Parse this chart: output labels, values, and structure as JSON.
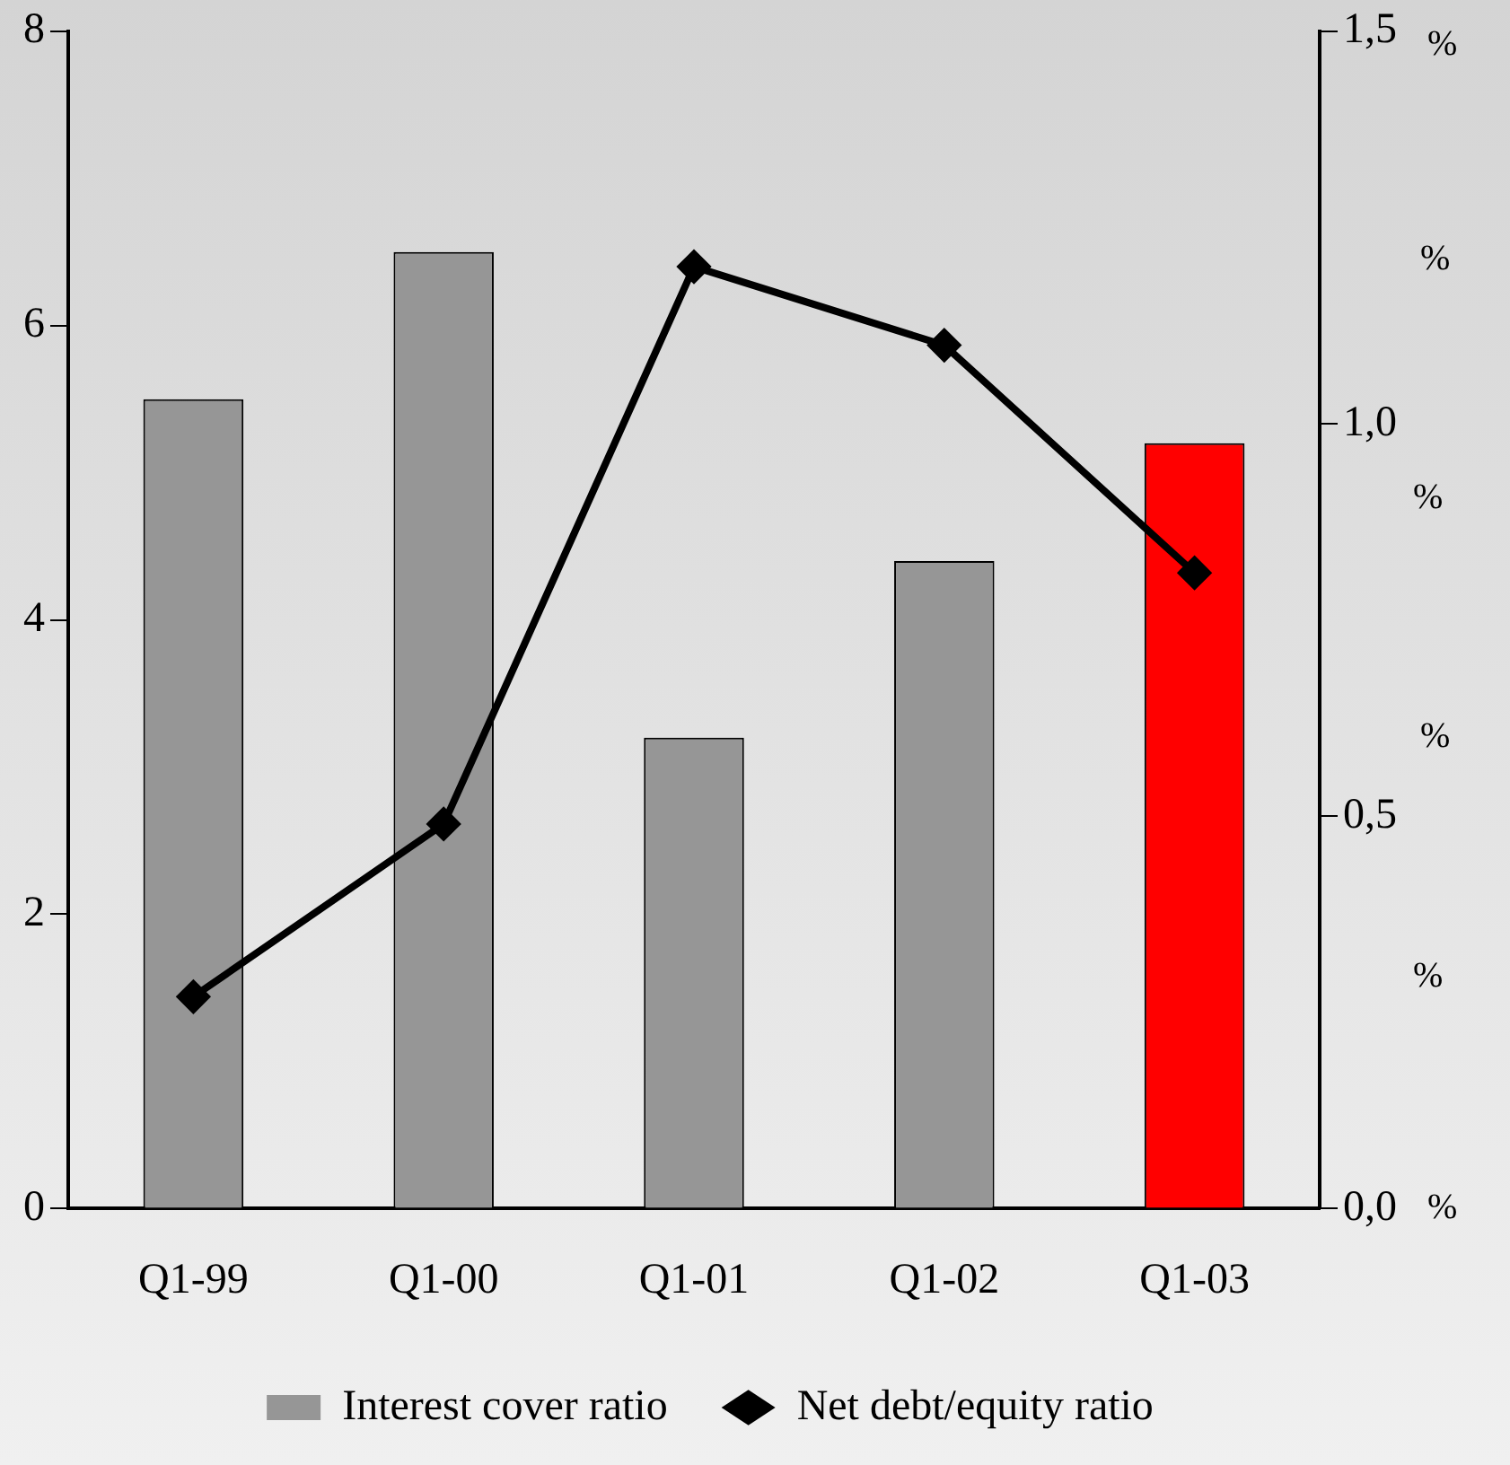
{
  "chart_data": {
    "type": "bar",
    "categories": [
      "Q1-99",
      "Q1-00",
      "Q1-01",
      "Q1-02",
      "Q1-03"
    ],
    "series": [
      {
        "name": "Interest cover ratio",
        "color": "#969696",
        "colors": [
          "#969696",
          "#969696",
          "#969696",
          "#969696",
          "#ff0000"
        ],
        "values": [
          5.5,
          6.5,
          3.2,
          4.4,
          5.2
        ]
      },
      {
        "name": "Net debt/equity ratio",
        "type": "line",
        "axis": "y2",
        "color": "#000000",
        "marker": "diamond",
        "values": [
          0.27,
          0.49,
          1.2,
          1.1,
          0.81
        ]
      }
    ],
    "ylim": [
      0,
      8
    ],
    "yticks": [
      0,
      2,
      4,
      6,
      8
    ],
    "y2lim": [
      0,
      1.5
    ],
    "y2ticks": [
      {
        "value": 0,
        "label": "0,0"
      },
      {
        "value": 0.5,
        "label": "0,5"
      },
      {
        "value": 1,
        "label": "1,0"
      },
      {
        "value": 1.5,
        "label": "1,5"
      }
    ],
    "annotations": [
      "%",
      "%",
      "%",
      "%",
      "%",
      "%"
    ],
    "grid": false,
    "legend": "bottom"
  }
}
